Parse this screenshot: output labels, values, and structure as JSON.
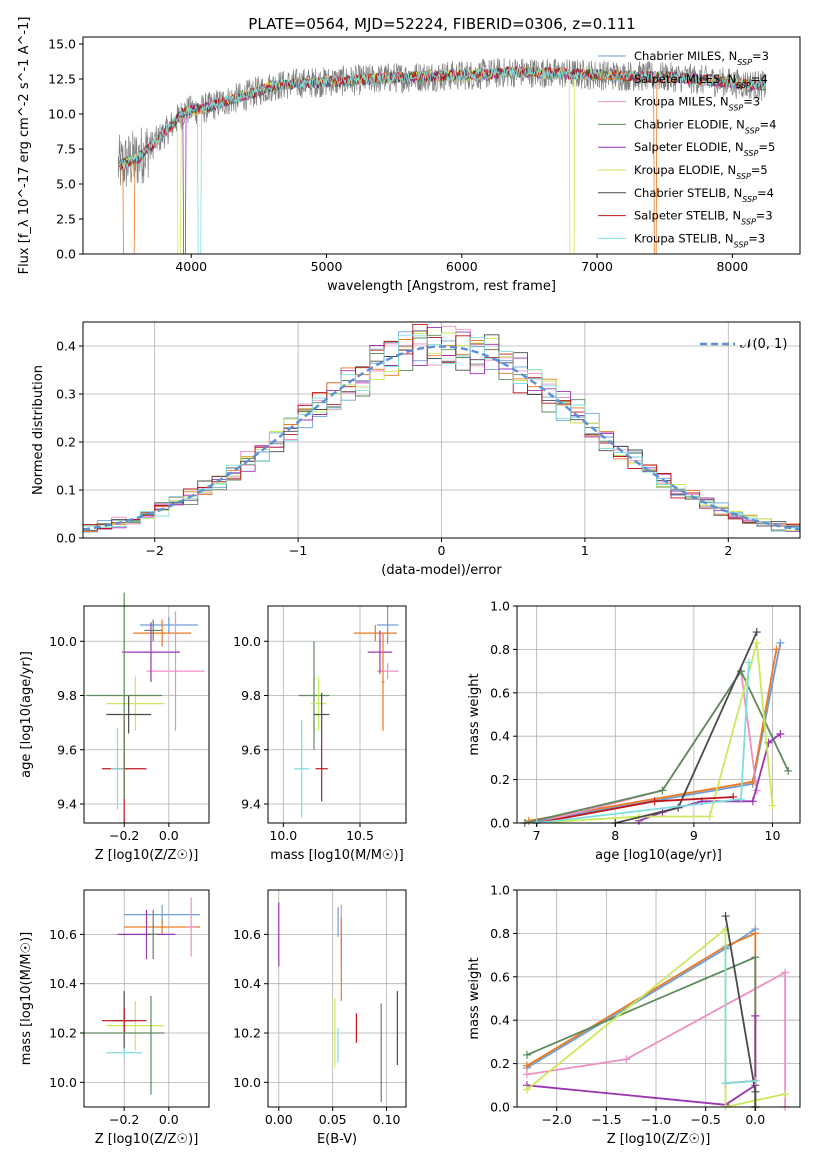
{
  "title": "PLATE=0564, MJD=52224, FIBERID=0306, z=0.111",
  "colors": {
    "chabrier_miles": "#6d9fd6",
    "salpeter_miles": "#ea7a23",
    "kroupa_miles": "#ee8fc4",
    "chabrier_elodie": "#5e8a5e",
    "salpeter_elodie": "#9a35b0",
    "kroupa_elodie": "#c9ea5a",
    "chabrier_stelib": "#4a4a4a",
    "salpeter_stelib": "#c0161c",
    "kroupa_stelib": "#80dddd",
    "normal_curve": "#5b8fd6",
    "grid": "#b0b0b0"
  },
  "legend_entries": [
    "Chabrier MILES, N_SSP=3",
    "Salpeter MILES, N_SSP=4",
    "Kroupa MILES, N_SSP=3",
    "Chabrier ELODIE, N_SSP=4",
    "Salpeter ELODIE, N_SSP=5",
    "Kroupa ELODIE, N_SSP=5",
    "Chabrier STELIB, N_SSP=4",
    "Salpeter STELIB, N_SSP=3",
    "Kroupa STELIB, N_SSP=3"
  ],
  "chart_data": [
    {
      "type": "line",
      "panel": "spectrum",
      "xlabel": "wavelength [Angstrom, rest frame]",
      "ylabel": "Flux [f_λ 10^-17 erg cm^-2 s^-1 A^-1]",
      "xlim": [
        3200,
        8500
      ],
      "ylim": [
        0,
        15.5
      ],
      "xticks": [
        4000,
        5000,
        6000,
        7000,
        8000
      ],
      "yticks": [
        0.0,
        2.5,
        5.0,
        7.5,
        10.0,
        12.5,
        15.0
      ],
      "continuum": {
        "x": [
          3460,
          3600,
          3800,
          3950,
          4100,
          4250,
          4400,
          4600,
          4800,
          5000,
          5200,
          5500,
          5800,
          6100,
          6400,
          6700,
          7000,
          7300,
          7600,
          7900,
          8250
        ],
        "y": [
          6.3,
          6.8,
          8.6,
          10.2,
          10.4,
          10.9,
          11.3,
          12.0,
          12.2,
          12.3,
          12.4,
          12.6,
          12.7,
          12.8,
          13.0,
          12.9,
          12.8,
          12.7,
          12.6,
          12.3,
          12.0
        ]
      },
      "legend_position": "right"
    },
    {
      "type": "step",
      "panel": "residual-histogram",
      "xlabel": "(data-model)/error",
      "ylabel": "Normed distribution",
      "xlim": [
        -2.5,
        2.5
      ],
      "ylim": [
        0,
        0.45
      ],
      "xticks": [
        -2,
        -1,
        0,
        1,
        2
      ],
      "yticks": [
        0.0,
        0.1,
        0.2,
        0.3,
        0.4
      ],
      "bin_width": 0.1,
      "reference_curve": "𝒩(0, 1)",
      "grid": true
    },
    {
      "type": "errorbar",
      "panel": "age-vs-Z",
      "xlabel": "Z [log10(Z/Z☉)]",
      "ylabel": "age [log10(age/yr)]",
      "xlim": [
        -0.38,
        0.18
      ],
      "ylim": [
        9.33,
        10.13
      ],
      "xticks": [
        -0.2,
        0.0
      ],
      "yticks": [
        9.4,
        9.6,
        9.8,
        10.0
      ],
      "points": [
        {
          "model": "chabrier_miles",
          "x": 0.0,
          "y": 10.06,
          "xerr": 0.13,
          "yerr": 0.03
        },
        {
          "model": "salpeter_miles",
          "x": -0.03,
          "y": 10.03,
          "xerr": 0.13,
          "yerr": 0.05
        },
        {
          "model": "kroupa_miles",
          "x": 0.03,
          "y": 9.89,
          "xerr": 0.13,
          "yerr": 0.22
        },
        {
          "model": "chabrier_elodie",
          "x": -0.07,
          "y": 10.04,
          "xerr": 0.04,
          "yerr": 0.04
        },
        {
          "model": "salpeter_elodie",
          "x": -0.08,
          "y": 9.96,
          "xerr": 0.13,
          "yerr": 0.11
        },
        {
          "model": "kroupa_elodie",
          "x": -0.15,
          "y": 9.77,
          "xerr": 0.13,
          "yerr": 0.1
        },
        {
          "model": "chabrier_stelib",
          "x": -0.18,
          "y": 9.73,
          "xerr": 0.1,
          "yerr": 0.07
        },
        {
          "model": "salpeter_stelib",
          "x": -0.2,
          "y": 9.53,
          "xerr": 0.1,
          "yerr": 0.2
        },
        {
          "model": "kroupa_stelib",
          "x": -0.23,
          "y": 9.53,
          "xerr": 0.03,
          "yerr": 0.15
        },
        {
          "model": "chabrier_elodie",
          "x": -0.2,
          "y": 9.8,
          "xerr": 0.17,
          "yerr": 0.38
        }
      ]
    },
    {
      "type": "errorbar",
      "panel": "age-vs-mass",
      "xlabel": "mass [log10(M/M☉)]",
      "xlim": [
        9.9,
        10.8
      ],
      "ylim": [
        9.33,
        10.13
      ],
      "xticks": [
        10.0,
        10.5
      ],
      "yticks": [
        9.4,
        9.6,
        9.8,
        10.0
      ],
      "points": [
        {
          "model": "chabrier_miles",
          "x": 10.68,
          "y": 10.06,
          "xerr": 0.07,
          "yerr": 0.07
        },
        {
          "model": "salpeter_miles",
          "x": 10.6,
          "y": 10.03,
          "xerr": 0.14,
          "yerr": 0.03
        },
        {
          "model": "kroupa_miles",
          "x": 10.68,
          "y": 9.89,
          "xerr": 0.07,
          "yerr": 0.03
        },
        {
          "model": "salpeter_elodie",
          "x": 10.63,
          "y": 9.96,
          "xerr": 0.08,
          "yerr": 0.08
        },
        {
          "model": "chabrier_elodie",
          "x": 10.2,
          "y": 9.8,
          "xerr": 0.1,
          "yerr": 0.2
        },
        {
          "model": "kroupa_elodie",
          "x": 10.23,
          "y": 9.77,
          "xerr": 0.05,
          "yerr": 0.1
        },
        {
          "model": "chabrier_stelib",
          "x": 10.25,
          "y": 9.73,
          "xerr": 0.05,
          "yerr": 0.08
        },
        {
          "model": "salpeter_stelib",
          "x": 10.25,
          "y": 9.53,
          "xerr": 0.04,
          "yerr": 0.12
        },
        {
          "model": "kroupa_stelib",
          "x": 10.12,
          "y": 9.53,
          "xerr": 0.05,
          "yerr": 0.18
        },
        {
          "model": "salpeter_miles",
          "x": 10.65,
          "y": 9.85,
          "xerr": 0.01,
          "yerr": 0.18
        }
      ]
    },
    {
      "type": "line",
      "panel": "mass-weight-vs-age",
      "xlabel": "age [log10(age/yr)]",
      "ylabel": "mass weight",
      "xlim": [
        6.75,
        10.35
      ],
      "ylim": [
        0,
        1.0
      ],
      "xticks": [
        7,
        8,
        9,
        10
      ],
      "yticks": [
        0.0,
        0.2,
        0.4,
        0.6,
        0.8,
        1.0
      ],
      "series": [
        {
          "model": "chabrier_miles",
          "x": [
            6.85,
            9.75,
            10.1
          ],
          "y": [
            0.0,
            0.18,
            0.83
          ]
        },
        {
          "model": "salpeter_miles",
          "x": [
            6.9,
            9.75,
            10.05
          ],
          "y": [
            0.01,
            0.19,
            0.8
          ]
        },
        {
          "model": "kroupa_miles",
          "x": [
            7.0,
            8.6,
            9.6,
            9.8
          ],
          "y": [
            0.0,
            0.15,
            0.7,
            0.15
          ]
        },
        {
          "model": "chabrier_elodie",
          "x": [
            6.85,
            8.6,
            9.6,
            10.2
          ],
          "y": [
            0.0,
            0.15,
            0.7,
            0.24
          ]
        },
        {
          "model": "salpeter_elodie",
          "x": [
            8.3,
            8.6,
            9.1,
            9.75,
            9.95,
            10.1
          ],
          "y": [
            0.01,
            0.05,
            0.1,
            0.1,
            0.37,
            0.41
          ]
        },
        {
          "model": "kroupa_elodie",
          "x": [
            7.0,
            8.3,
            9.2,
            9.8,
            10.0
          ],
          "y": [
            0.0,
            0.03,
            0.03,
            0.83,
            0.08
          ]
        },
        {
          "model": "chabrier_stelib",
          "x": [
            8.0,
            8.8,
            9.8
          ],
          "y": [
            0.0,
            0.07,
            0.88
          ]
        },
        {
          "model": "salpeter_stelib",
          "x": [
            7.0,
            8.5,
            9.5
          ],
          "y": [
            0.0,
            0.1,
            0.12
          ]
        },
        {
          "model": "kroupa_stelib",
          "x": [
            7.0,
            9.6,
            9.7
          ],
          "y": [
            0.0,
            0.11,
            0.74
          ]
        }
      ],
      "grid": true
    },
    {
      "type": "errorbar",
      "panel": "mass-vs-Z",
      "xlabel": "Z [log10(Z/Z☉)]",
      "ylabel": "mass [log10(M/M☉)]",
      "xlim": [
        -0.38,
        0.18
      ],
      "ylim": [
        9.9,
        10.78
      ],
      "xticks": [
        -0.2,
        0.0
      ],
      "yticks": [
        10.0,
        10.2,
        10.4,
        10.6
      ],
      "points": [
        {
          "model": "chabrier_miles",
          "x": -0.03,
          "y": 10.68,
          "xerr": 0.17,
          "yerr": 0.04
        },
        {
          "model": "salpeter_miles",
          "x": -0.03,
          "y": 10.63,
          "xerr": 0.17,
          "yerr": 0.03
        },
        {
          "model": "kroupa_miles",
          "x": 0.1,
          "y": 10.63,
          "xerr": 0.02,
          "yerr": 0.12
        },
        {
          "model": "salpeter_elodie",
          "x": -0.1,
          "y": 10.6,
          "xerr": 0.13,
          "yerr": 0.1
        },
        {
          "model": "chabrier_elodie",
          "x": -0.07,
          "y": 10.6,
          "xerr": 0.02,
          "yerr": 0.1
        },
        {
          "model": "kroupa_elodie",
          "x": -0.15,
          "y": 10.23,
          "xerr": 0.13,
          "yerr": 0.1
        },
        {
          "model": "chabrier_stelib",
          "x": -0.2,
          "y": 10.25,
          "xerr": 0.05,
          "yerr": 0.12
        },
        {
          "model": "salpeter_stelib",
          "x": -0.2,
          "y": 10.25,
          "xerr": 0.1,
          "yerr": 0.05
        },
        {
          "model": "kroupa_stelib",
          "x": -0.2,
          "y": 10.12,
          "xerr": 0.08,
          "yerr": 0.02
        },
        {
          "model": "chabrier_elodie",
          "x": -0.2,
          "y": 10.2,
          "xerr": 0.18,
          "yerr": 0.0
        },
        {
          "model": "chabrier_elodie",
          "x": -0.08,
          "y": 10.15,
          "xerr": 0.0,
          "yerr": 0.2
        }
      ]
    },
    {
      "type": "errorbar",
      "panel": "mass-vs-EBV",
      "xlabel": "E(B-V)",
      "xlim": [
        -0.01,
        0.118
      ],
      "ylim": [
        9.9,
        10.78
      ],
      "xticks": [
        0.0,
        0.05,
        0.1
      ],
      "yticks": [
        10.0,
        10.2,
        10.4,
        10.6
      ],
      "points": [
        {
          "model": "salpeter_elodie",
          "x": 0.0,
          "y": 10.6,
          "xerr": 0.0,
          "yerr": 0.13
        },
        {
          "model": "kroupa_miles",
          "x": 0.058,
          "y": 10.6,
          "xerr": 0.0,
          "yerr": 0.12
        },
        {
          "model": "chabrier_miles",
          "x": 0.055,
          "y": 10.65,
          "xerr": 0.0,
          "yerr": 0.06
        },
        {
          "model": "salpeter_miles",
          "x": 0.058,
          "y": 10.5,
          "xerr": 0.0,
          "yerr": 0.17
        },
        {
          "model": "kroupa_elodie",
          "x": 0.052,
          "y": 10.2,
          "xerr": 0.0,
          "yerr": 0.14
        },
        {
          "model": "kroupa_stelib",
          "x": 0.055,
          "y": 10.15,
          "xerr": 0.0,
          "yerr": 0.07
        },
        {
          "model": "salpeter_stelib",
          "x": 0.072,
          "y": 10.22,
          "xerr": 0.0,
          "yerr": 0.06
        },
        {
          "model": "chabrier_elodie",
          "x": 0.095,
          "y": 10.12,
          "xerr": 0.0,
          "yerr": 0.2
        },
        {
          "model": "chabrier_stelib",
          "x": 0.11,
          "y": 10.22,
          "xerr": 0.0,
          "yerr": 0.15
        }
      ]
    },
    {
      "type": "line",
      "panel": "mass-weight-vs-Z",
      "xlabel": "Z [log10(Z/Z☉)]",
      "ylabel": "mass weight",
      "xlim": [
        -2.4,
        0.45
      ],
      "ylim": [
        0,
        1.0
      ],
      "xticks": [
        -2.0,
        -1.5,
        -1.0,
        -0.5,
        0.0
      ],
      "yticks": [
        0.0,
        0.2,
        0.4,
        0.6,
        0.8,
        1.0
      ],
      "series": [
        {
          "model": "chabrier_miles",
          "x": [
            -2.3,
            -0.3,
            0.0
          ],
          "y": [
            0.18,
            0.73,
            0.82
          ]
        },
        {
          "model": "salpeter_miles",
          "x": [
            -2.3,
            -0.3,
            0.0,
            0.0
          ],
          "y": [
            0.19,
            0.74,
            0.8,
            0.0
          ]
        },
        {
          "model": "kroupa_miles",
          "x": [
            -2.3,
            -1.3,
            0.3,
            0.3
          ],
          "y": [
            0.15,
            0.22,
            0.62,
            0.0
          ]
        },
        {
          "model": "chabrier_elodie",
          "x": [
            -2.3,
            0.0,
            0.0
          ],
          "y": [
            0.24,
            0.69,
            0.0
          ]
        },
        {
          "model": "salpeter_elodie",
          "x": [
            -2.3,
            -0.3,
            0.0,
            0.0
          ],
          "y": [
            0.1,
            0.01,
            0.1,
            0.42
          ]
        },
        {
          "model": "kroupa_elodie",
          "x": [
            -2.3,
            -0.3,
            -0.3,
            0.0,
            0.3
          ],
          "y": [
            0.08,
            0.82,
            0.0,
            0.03,
            0.06
          ]
        },
        {
          "model": "chabrier_stelib",
          "x": [
            -0.3,
            0.0,
            0.0
          ],
          "y": [
            0.88,
            0.07,
            0.0
          ]
        },
        {
          "model": "salpeter_stelib",
          "x": [
            -0.3,
            0.0
          ],
          "y": [
            0.11,
            0.12
          ]
        },
        {
          "model": "kroupa_stelib",
          "x": [
            -0.3,
            -0.3,
            0.0
          ],
          "y": [
            0.74,
            0.11,
            0.12
          ]
        }
      ],
      "grid": true
    }
  ]
}
